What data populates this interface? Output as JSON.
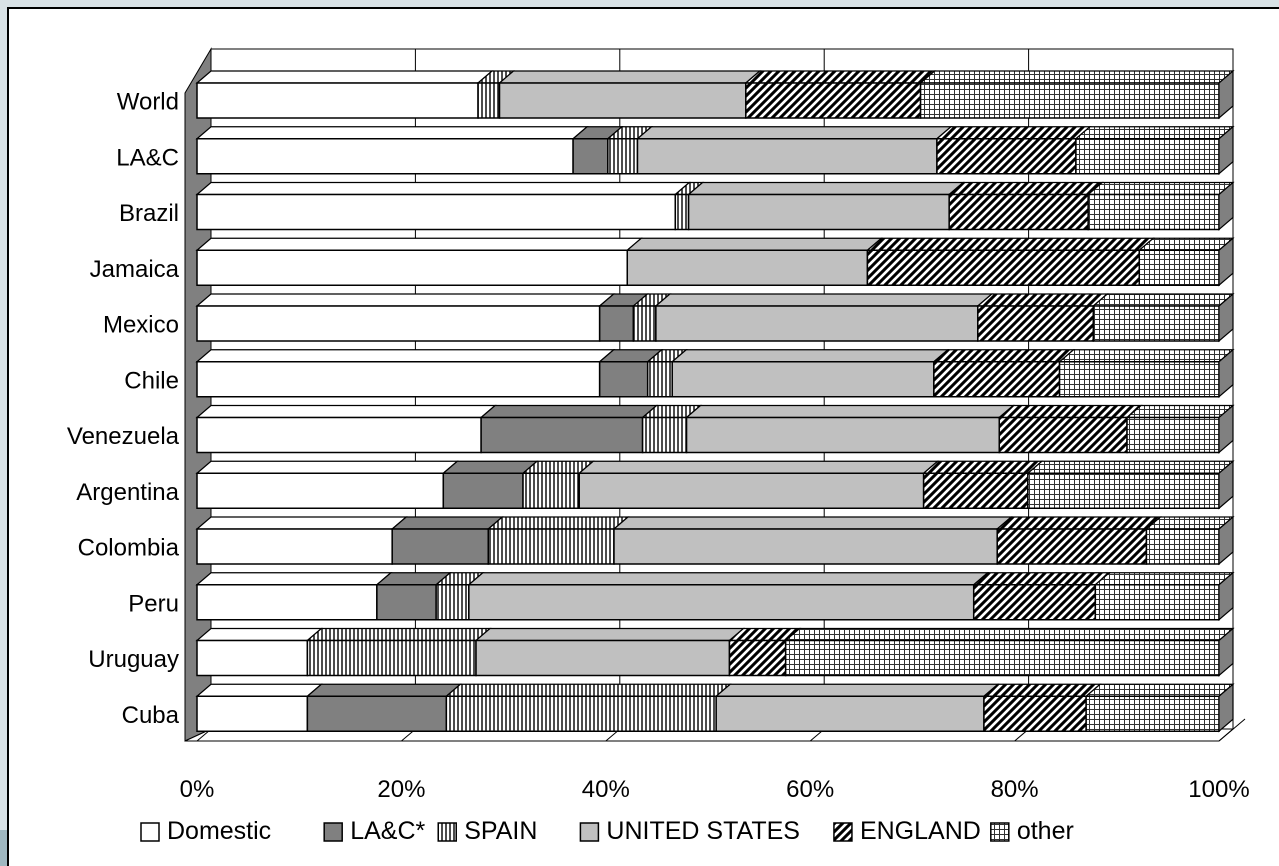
{
  "chart_data": {
    "type": "bar",
    "orientation": "horizontal",
    "stacked": "100%",
    "style": "3d",
    "categories": [
      "World",
      "LA&C",
      "Brazil",
      "Jamaica",
      "Mexico",
      "Chile",
      "Venezuela",
      "Argentina",
      "Colombia",
      "Peru",
      "Uruguay",
      "Cuba"
    ],
    "series": [
      {
        "name": "Domestic",
        "color": "#ffffff",
        "pattern": "none",
        "values": [
          27.5,
          36.8,
          46.8,
          42.1,
          39.4,
          39.4,
          27.8,
          24.1,
          19.1,
          17.6,
          10.8,
          10.8
        ]
      },
      {
        "name": "LA&C*",
        "color": "#808080",
        "pattern": "none",
        "values": [
          0.0,
          3.4,
          0.0,
          0.0,
          3.3,
          4.7,
          15.8,
          7.8,
          9.4,
          5.8,
          0.0,
          13.6
        ]
      },
      {
        "name": "SPAIN",
        "color": "#ffffff",
        "pattern": "vertical-lines",
        "values": [
          2.1,
          2.9,
          1.3,
          0.0,
          2.2,
          2.4,
          4.3,
          5.5,
          12.3,
          3.2,
          16.5,
          26.4
        ]
      },
      {
        "name": "UNITED STATES",
        "color": "#c0c0c0",
        "pattern": "none",
        "values": [
          24.1,
          29.3,
          25.5,
          23.5,
          31.5,
          25.6,
          30.6,
          33.7,
          37.5,
          49.4,
          24.8,
          26.2
        ]
      },
      {
        "name": "ENGLAND",
        "color": "#ffffff",
        "pattern": "diagonal-stripes",
        "values": [
          17.1,
          13.6,
          13.6,
          26.6,
          11.3,
          12.3,
          12.5,
          10.2,
          14.6,
          11.9,
          5.5,
          10.0
        ]
      },
      {
        "name": "other",
        "color": "#ffffff",
        "pattern": "grid",
        "values": [
          29.2,
          14.0,
          12.8,
          7.8,
          12.3,
          15.6,
          9.0,
          18.7,
          7.1,
          12.1,
          42.4,
          13.0
        ]
      }
    ],
    "x_ticks": [
      "0%",
      "20%",
      "40%",
      "60%",
      "80%",
      "100%"
    ],
    "xlim": [
      0,
      100
    ],
    "grid": true,
    "legend_position": "bottom"
  }
}
